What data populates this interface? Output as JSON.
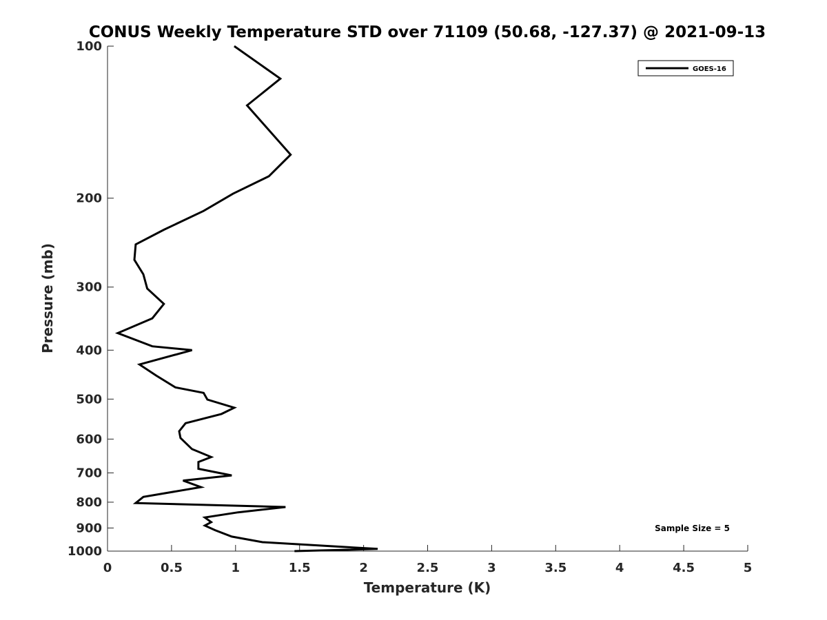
{
  "chart_data": {
    "type": "line",
    "title": "CONUS Weekly Temperature STD over 71109 (50.68, -127.37) @ 2021-09-13",
    "xlabel": "Temperature (K)",
    "ylabel": "Pressure (mb)",
    "xlim": [
      0,
      5
    ],
    "ylim": [
      100,
      1000
    ],
    "y_scale": "log",
    "y_reversed": true,
    "x_ticks": [
      "0",
      "0.5",
      "1",
      "1.5",
      "2",
      "2.5",
      "3",
      "3.5",
      "4",
      "4.5",
      "5"
    ],
    "y_ticks": [
      "100",
      "200",
      "300",
      "400",
      "500",
      "600",
      "700",
      "800",
      "900",
      "1000"
    ],
    "grid": false,
    "legend_position": "top-right",
    "series": [
      {
        "name": "GOES-16",
        "color": "#000000",
        "x": [
          0.99,
          1.35,
          1.09,
          1.43,
          1.26,
          0.98,
          0.75,
          0.44,
          0.22,
          0.21,
          0.28,
          0.31,
          0.44,
          0.35,
          0.08,
          0.35,
          0.66,
          0.25,
          0.38,
          0.53,
          0.75,
          0.78,
          0.99,
          0.89,
          0.61,
          0.56,
          0.57,
          0.66,
          0.81,
          0.71,
          0.71,
          0.97,
          0.59,
          0.73,
          0.28,
          0.22,
          1.39,
          1.02,
          0.76,
          0.81,
          0.76,
          0.84,
          0.97,
          1.21,
          2.11,
          1.46
        ],
        "y": [
          100,
          116,
          131,
          164,
          181,
          196,
          212,
          231,
          247,
          265,
          283,
          302,
          324,
          346,
          370,
          393,
          400,
          427,
          449,
          474,
          486,
          501,
          520,
          535,
          558,
          579,
          597,
          628,
          651,
          666,
          687,
          708,
          725,
          747,
          781,
          803,
          818,
          838,
          858,
          876,
          890,
          909,
          936,
          960,
          990,
          1000
        ]
      }
    ],
    "annotations": [
      "Sample Size = 5"
    ]
  }
}
